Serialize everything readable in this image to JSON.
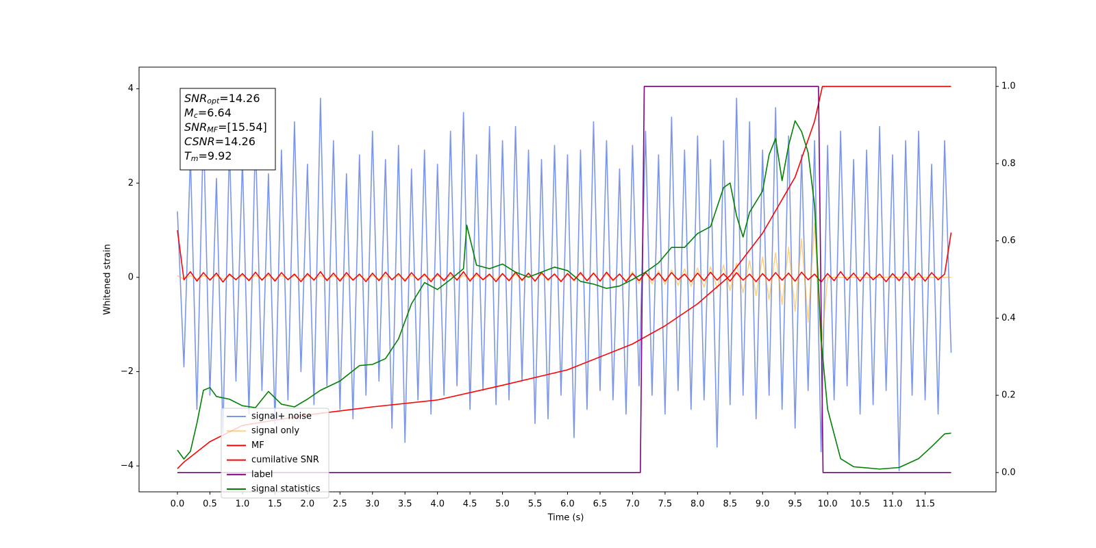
{
  "chart_data": {
    "type": "line",
    "xlabel": "Time (s)",
    "ylabel": "Whitened strain",
    "xlim": [
      -0.59,
      12.59
    ],
    "ylim": [
      -4.55,
      4.46
    ],
    "y2lim": [
      -0.05,
      1.05
    ],
    "xticks": [
      {
        "value": 0,
        "label": "0.0"
      },
      0.5,
      {
        "value": 1,
        "label": "1.0"
      },
      1.5,
      {
        "value": 2,
        "label": "2.0"
      },
      2.5,
      {
        "value": 3,
        "label": "3.0"
      },
      3.5,
      {
        "value": 4,
        "label": "4.0"
      },
      4.5,
      {
        "value": 5,
        "label": "5.0"
      },
      5.5,
      {
        "value": 6,
        "label": "6.0"
      },
      6.5,
      {
        "value": 7,
        "label": "7.0"
      },
      7.5,
      {
        "value": 8,
        "label": "8.0"
      },
      8.5,
      {
        "value": 9,
        "label": "9.0"
      },
      9.5,
      {
        "value": 10,
        "label": "10.0"
      },
      10.5,
      {
        "value": 11,
        "label": "11.0"
      },
      11.5
    ],
    "yticks": [
      {
        "value": -4,
        "label": "−4"
      },
      {
        "value": -2,
        "label": "−2"
      },
      0,
      2,
      4
    ],
    "y2ticks": [
      {
        "value": 0,
        "label": "0.0"
      },
      0.2,
      0.4,
      0.6,
      0.8,
      {
        "value": 1,
        "label": "1.0"
      }
    ],
    "legend": "lower left",
    "annotations": [
      {
        "symbol": "SNR",
        "subscript": "opt",
        "text": "=14.26"
      },
      {
        "symbol": "M",
        "subscript": "c",
        "text": "=6.64"
      },
      {
        "symbol": "SNR",
        "subscript": "MF",
        "text": "=[15.54]"
      },
      {
        "symbol": "CSNR",
        "subscript": null,
        "text": "=14.26"
      },
      {
        "symbol": "T",
        "subscript": "m",
        "text": "=9.92"
      }
    ],
    "x": [
      0,
      0.1,
      0.2,
      0.3,
      0.4,
      0.5,
      0.6,
      0.7,
      0.8,
      0.9,
      1,
      1.1,
      1.2,
      1.3,
      1.4,
      1.5,
      1.6,
      1.7,
      1.8,
      1.9,
      2,
      2.1,
      2.2,
      2.3,
      2.4,
      2.5,
      2.6,
      2.7,
      2.8,
      2.9,
      3,
      3.1,
      3.2,
      3.3,
      3.4,
      3.5,
      3.6,
      3.7,
      3.8,
      3.9,
      4,
      4.1,
      4.2,
      4.3,
      4.4,
      4.5,
      4.6,
      4.7,
      4.8,
      4.9,
      5,
      5.1,
      5.2,
      5.3,
      5.4,
      5.5,
      5.6,
      5.7,
      5.8,
      5.9,
      6,
      6.1,
      6.2,
      6.3,
      6.4,
      6.5,
      6.6,
      6.7,
      6.8,
      6.9,
      7,
      7.1,
      7.2,
      7.3,
      7.4,
      7.5,
      7.6,
      7.7,
      7.8,
      7.9,
      8,
      8.1,
      8.2,
      8.3,
      8.4,
      8.5,
      8.6,
      8.7,
      8.8,
      8.9,
      9,
      9.1,
      9.2,
      9.3,
      9.4,
      9.5,
      9.6,
      9.7,
      9.8,
      9.9,
      10,
      10.1,
      10.2,
      10.3,
      10.4,
      10.5,
      10.6,
      10.7,
      10.8,
      10.9,
      11,
      11.1,
      11.2,
      11.3,
      11.4,
      11.5,
      11.6,
      11.7,
      11.8,
      11.9
    ],
    "series": [
      {
        "name": "signal+ noise",
        "color": "#4169e1",
        "alpha": 0.7,
        "axis": "y",
        "values": [
          1.4,
          -1.9,
          2.6,
          -2.8,
          3.2,
          -2.5,
          2.1,
          -3.3,
          2.8,
          -2.2,
          2.5,
          -2.9,
          3.0,
          -2.4,
          2.2,
          -3.1,
          2.7,
          -2.6,
          3.3,
          -2.0,
          2.4,
          -2.7,
          3.8,
          -2.3,
          2.9,
          -2.8,
          2.2,
          -3.0,
          2.6,
          -2.5,
          3.1,
          -2.2,
          2.5,
          -3.2,
          2.8,
          -3.5,
          2.3,
          -2.6,
          2.7,
          -2.9,
          2.4,
          -2.5,
          3.1,
          -2.3,
          3.5,
          -2.8,
          2.6,
          -2.4,
          3.2,
          -2.7,
          2.9,
          -2.6,
          3.2,
          -2.2,
          2.7,
          -3.1,
          2.5,
          -3.0,
          2.8,
          -2.5,
          2.6,
          -3.4,
          2.7,
          -2.8,
          3.3,
          -2.4,
          2.9,
          -2.6,
          2.3,
          -2.9,
          2.8,
          -2.3,
          3.1,
          -2.5,
          2.6,
          -2.9,
          3.4,
          -2.4,
          2.7,
          -2.8,
          3.0,
          -2.6,
          2.5,
          -3.6,
          2.9,
          -2.7,
          3.8,
          -2.5,
          3.3,
          -3.0,
          2.7,
          -2.5,
          3.6,
          -2.8,
          3.0,
          -3.2,
          2.6,
          -2.4,
          2.9,
          -3.7,
          2.8,
          -2.6,
          3.1,
          -2.3,
          2.5,
          -2.9,
          2.7,
          -2.7,
          3.2,
          -2.4,
          2.6,
          -4.1,
          2.9,
          -2.5,
          3.1,
          -2.6,
          2.4,
          -2.9,
          2.9,
          -1.6
        ]
      },
      {
        "name": "signal only",
        "color": "#ffa500",
        "alpha": 0.5,
        "axis": "y",
        "values": [
          0.04,
          -0.04,
          0.04,
          -0.04,
          0.04,
          -0.04,
          0.04,
          -0.04,
          0.04,
          -0.04,
          0.04,
          -0.04,
          0.04,
          -0.04,
          0.04,
          -0.04,
          0.04,
          -0.04,
          0.04,
          -0.04,
          0.04,
          -0.04,
          0.04,
          -0.04,
          0.04,
          -0.04,
          0.04,
          -0.04,
          0.04,
          -0.04,
          0.04,
          -0.04,
          0.04,
          -0.04,
          0.04,
          -0.04,
          0.04,
          -0.04,
          0.04,
          -0.04,
          0.04,
          -0.04,
          0.04,
          -0.04,
          0.04,
          -0.04,
          0.04,
          -0.04,
          0.04,
          -0.04,
          0.08,
          -0.08,
          0.08,
          -0.08,
          0.08,
          -0.08,
          0.08,
          -0.08,
          0.08,
          -0.08,
          0.08,
          -0.08,
          0.08,
          -0.08,
          0.08,
          -0.08,
          0.08,
          -0.08,
          0.08,
          -0.08,
          0.12,
          -0.13,
          0.13,
          -0.14,
          0.14,
          -0.15,
          0.16,
          -0.17,
          0.18,
          -0.19,
          0.2,
          -0.21,
          0.23,
          -0.24,
          0.26,
          -0.28,
          0.3,
          -0.33,
          0.36,
          -0.39,
          0.43,
          -0.47,
          0.52,
          -0.58,
          0.64,
          -0.72,
          0.82,
          -0.95,
          1.15,
          -1.55,
          0,
          0,
          0,
          0,
          0,
          0,
          0,
          0,
          0,
          0,
          0,
          0,
          0,
          0,
          0,
          0,
          0,
          0,
          0,
          0
        ]
      },
      {
        "name": "MF",
        "color": "#ff0000",
        "alpha": 1,
        "axis": "y",
        "values": [
          1.0,
          -0.05,
          0.12,
          -0.08,
          0.1,
          -0.06,
          0.09,
          -0.1,
          0.07,
          -0.05,
          0.08,
          -0.07,
          0.11,
          -0.06,
          0.09,
          -0.08,
          0.1,
          -0.05,
          0.07,
          -0.09,
          0.08,
          -0.06,
          0.12,
          -0.07,
          0.09,
          -0.08,
          0.1,
          -0.06,
          0.07,
          -0.09,
          0.09,
          -0.07,
          0.11,
          -0.05,
          0.08,
          -0.08,
          0.1,
          -0.06,
          0.07,
          -0.09,
          0.08,
          -0.07,
          0.1,
          -0.06,
          0.12,
          -0.08,
          0.09,
          -0.05,
          0.07,
          -0.09,
          0.08,
          -0.07,
          0.11,
          -0.06,
          0.09,
          -0.08,
          0.1,
          -0.05,
          0.07,
          -0.09,
          0.08,
          -0.06,
          0.1,
          -0.07,
          0.09,
          -0.08,
          0.11,
          -0.06,
          0.07,
          -0.09,
          0.08,
          -0.07,
          0.1,
          -0.06,
          0.09,
          -0.08,
          0.1,
          -0.05,
          0.07,
          -0.09,
          0.09,
          -0.07,
          0.11,
          -0.06,
          0.08,
          -0.08,
          0.1,
          -0.06,
          0.07,
          -0.09,
          0.08,
          -0.07,
          0.1,
          -0.06,
          0.09,
          -0.08,
          0.11,
          -0.05,
          0.07,
          -0.1,
          0.08,
          -0.07,
          0.12,
          -0.06,
          0.09,
          -0.08,
          0.1,
          -0.05,
          0.07,
          -0.09,
          0.08,
          -0.07,
          0.11,
          -0.06,
          0.09,
          -0.08,
          0.1,
          -0.05,
          0.07,
          0.95
        ]
      },
      {
        "name": "cumilative SNR",
        "color": "#ff0000",
        "alpha": 1,
        "axis": "y2",
        "x": [
          0,
          0.1,
          0.5,
          1,
          2,
          3,
          4,
          5,
          6,
          7,
          7.5,
          8,
          8.5,
          9,
          9.5,
          9.8,
          9.92,
          11.9
        ],
        "values": [
          0.01,
          0.027,
          0.08,
          0.122,
          0.149,
          0.17,
          0.188,
          0.226,
          0.266,
          0.333,
          0.38,
          0.437,
          0.51,
          0.62,
          0.765,
          0.91,
          1.0,
          1.0
        ]
      },
      {
        "name": "label",
        "color": "#800080",
        "alpha": 1,
        "axis": "y2",
        "x": [
          0,
          7.12,
          7.18,
          9.86,
          9.93,
          11.9
        ],
        "values": [
          0,
          0,
          1,
          1,
          0,
          0
        ]
      },
      {
        "name": "signal statistics",
        "color": "#008000",
        "alpha": 1,
        "axis": "y2",
        "x": [
          0,
          0.1,
          0.2,
          0.3,
          0.4,
          0.5,
          0.6,
          0.8,
          1,
          1.2,
          1.4,
          1.6,
          1.8,
          2,
          2.2,
          2.5,
          2.8,
          3,
          3.2,
          3.4,
          3.6,
          3.8,
          4,
          4.2,
          4.4,
          4.45,
          4.6,
          4.8,
          5,
          5.2,
          5.4,
          5.6,
          5.8,
          6,
          6.2,
          6.4,
          6.6,
          6.8,
          7,
          7.2,
          7.4,
          7.6,
          7.8,
          8,
          8.2,
          8.4,
          8.5,
          8.6,
          8.7,
          8.8,
          9,
          9.1,
          9.2,
          9.3,
          9.4,
          9.5,
          9.6,
          9.7,
          9.8,
          9.9,
          10,
          10.2,
          10.4,
          10.8,
          11.1,
          11.4,
          11.6,
          11.8,
          11.9
        ],
        "values": [
          0.058,
          0.035,
          0.055,
          0.128,
          0.213,
          0.22,
          0.197,
          0.19,
          0.173,
          0.168,
          0.21,
          0.177,
          0.17,
          0.19,
          0.213,
          0.237,
          0.277,
          0.28,
          0.295,
          0.346,
          0.437,
          0.492,
          0.474,
          0.5,
          0.528,
          0.641,
          0.537,
          0.528,
          0.54,
          0.519,
          0.506,
          0.519,
          0.532,
          0.523,
          0.495,
          0.488,
          0.477,
          0.483,
          0.5,
          0.519,
          0.543,
          0.583,
          0.583,
          0.619,
          0.637,
          0.738,
          0.75,
          0.665,
          0.61,
          0.674,
          0.729,
          0.823,
          0.865,
          0.756,
          0.847,
          0.911,
          0.883,
          0.829,
          0.692,
          0.346,
          0.164,
          0.036,
          0.015,
          0.009,
          0.013,
          0.036,
          0.067,
          0.1,
          0.102
        ]
      }
    ]
  }
}
